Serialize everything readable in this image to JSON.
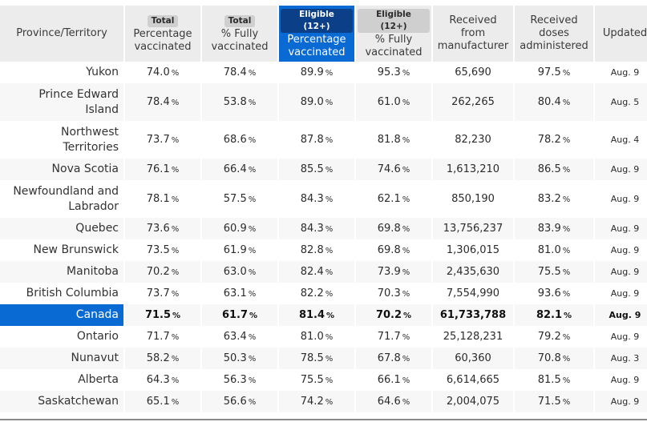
{
  "table": {
    "headers": [
      {
        "badge": "",
        "line1": "Province/Territory",
        "line2": "",
        "line3": "",
        "selected": false
      },
      {
        "badge": "Total",
        "line1": "Percentage",
        "line2": "vaccinated",
        "line3": "",
        "selected": false
      },
      {
        "badge": "Total",
        "line1": "% Fully",
        "line2": "vaccinated",
        "line3": "",
        "selected": false
      },
      {
        "badge": "Eligible (12+)",
        "line1": "Percentage",
        "line2": "vaccinated",
        "line3": "",
        "selected": true
      },
      {
        "badge": "Eligible (12+)",
        "line1": "% Fully",
        "line2": "vaccinated",
        "line3": "",
        "selected": false
      },
      {
        "badge": "",
        "line1": "Received",
        "line2": "from",
        "line3": "manufacturer",
        "selected": false
      },
      {
        "badge": "",
        "line1": "Received",
        "line2": "doses",
        "line3": "administered",
        "selected": false
      },
      {
        "badge": "",
        "line1": "Updated",
        "line2": "",
        "line3": "",
        "selected": false
      }
    ],
    "rows": [
      {
        "name": "Yukon",
        "name2": "",
        "total_pct": "74.0",
        "total_full": "78.4",
        "elig_pct": "89.9",
        "elig_full": "95.3",
        "received": "65,690",
        "administered": "97.5",
        "updated": "Aug. 9"
      },
      {
        "name": "Prince Edward",
        "name2": "Island",
        "total_pct": "78.4",
        "total_full": "53.8",
        "elig_pct": "89.0",
        "elig_full": "61.0",
        "received": "262,265",
        "administered": "80.4",
        "updated": "Aug. 5"
      },
      {
        "name": "Northwest",
        "name2": "Territories",
        "total_pct": "73.7",
        "total_full": "68.6",
        "elig_pct": "87.8",
        "elig_full": "81.8",
        "received": "82,230",
        "administered": "78.2",
        "updated": "Aug. 4"
      },
      {
        "name": "Nova Scotia",
        "name2": "",
        "total_pct": "76.1",
        "total_full": "66.4",
        "elig_pct": "85.5",
        "elig_full": "74.6",
        "received": "1,613,210",
        "administered": "86.5",
        "updated": "Aug. 9"
      },
      {
        "name": "Newfoundland and",
        "name2": "Labrador",
        "total_pct": "78.1",
        "total_full": "57.5",
        "elig_pct": "84.3",
        "elig_full": "62.1",
        "received": "850,190",
        "administered": "83.2",
        "updated": "Aug. 9"
      },
      {
        "name": "Quebec",
        "name2": "",
        "total_pct": "73.6",
        "total_full": "60.9",
        "elig_pct": "84.3",
        "elig_full": "69.8",
        "received": "13,756,237",
        "administered": "83.9",
        "updated": "Aug. 9"
      },
      {
        "name": "New Brunswick",
        "name2": "",
        "total_pct": "73.5",
        "total_full": "61.9",
        "elig_pct": "82.8",
        "elig_full": "69.8",
        "received": "1,306,015",
        "administered": "81.0",
        "updated": "Aug. 9"
      },
      {
        "name": "Manitoba",
        "name2": "",
        "total_pct": "70.2",
        "total_full": "63.0",
        "elig_pct": "82.4",
        "elig_full": "73.9",
        "received": "2,435,630",
        "administered": "75.5",
        "updated": "Aug. 9"
      },
      {
        "name": "British Columbia",
        "name2": "",
        "total_pct": "73.7",
        "total_full": "63.1",
        "elig_pct": "82.2",
        "elig_full": "70.3",
        "received": "7,554,990",
        "administered": "93.6",
        "updated": "Aug. 9"
      },
      {
        "name": "Canada",
        "name2": "",
        "total_pct": "71.5",
        "total_full": "61.7",
        "elig_pct": "81.4",
        "elig_full": "70.2",
        "received": "61,733,788",
        "administered": "82.1",
        "updated": "Aug. 9"
      },
      {
        "name": "Ontario",
        "name2": "",
        "total_pct": "71.7",
        "total_full": "63.4",
        "elig_pct": "81.0",
        "elig_full": "71.7",
        "received": "25,128,231",
        "administered": "79.2",
        "updated": "Aug. 9"
      },
      {
        "name": "Nunavut",
        "name2": "",
        "total_pct": "58.2",
        "total_full": "50.3",
        "elig_pct": "78.5",
        "elig_full": "67.8",
        "received": "60,360",
        "administered": "70.8",
        "updated": "Aug. 3"
      },
      {
        "name": "Alberta",
        "name2": "",
        "total_pct": "64.3",
        "total_full": "56.3",
        "elig_pct": "75.5",
        "elig_full": "66.1",
        "received": "6,614,665",
        "administered": "81.5",
        "updated": "Aug. 9"
      },
      {
        "name": "Saskatchewan",
        "name2": "",
        "total_pct": "65.1",
        "total_full": "56.6",
        "elig_pct": "74.2",
        "elig_full": "64.6",
        "received": "2,004,075",
        "administered": "71.5",
        "updated": "Aug. 9"
      }
    ],
    "percent_symbol": "%",
    "highlighted_row": "Canada",
    "sorted_column": "Eligible (12+) Percentage vaccinated"
  },
  "colors": {
    "accent": "#0a6ad4",
    "accent_dark_badge": "#0b3f87",
    "header_bg": "#ececec",
    "badge_bg": "#cfcfcf",
    "alt_row_bg": "#f7f7f7"
  }
}
